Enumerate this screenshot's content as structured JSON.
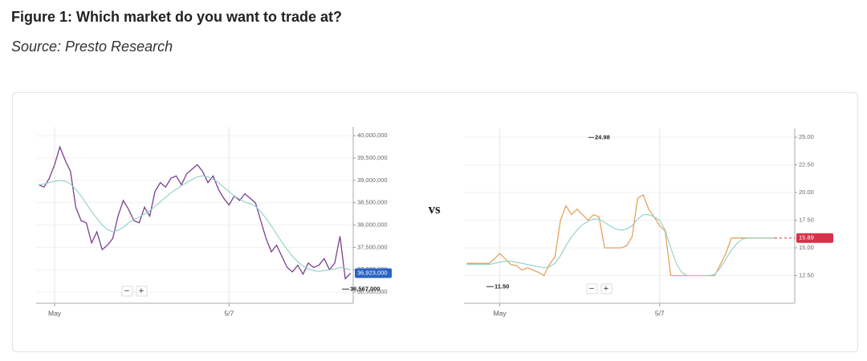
{
  "title": "Figure 1: Which market do you want to trade at?",
  "subtitle": "Source: Presto Research",
  "separator": "vs",
  "chart_data": [
    {
      "type": "line",
      "categories": [
        null,
        null,
        null,
        "May",
        null,
        null,
        null,
        null,
        null,
        null,
        null,
        null,
        null,
        null,
        null,
        null,
        null,
        null,
        null,
        null,
        null,
        null,
        null,
        null,
        null,
        null,
        null,
        null,
        null,
        null,
        null,
        null,
        null,
        null,
        null,
        null,
        "5/7",
        null,
        null,
        null,
        null,
        null,
        null,
        null,
        null,
        null,
        null,
        null,
        null,
        null,
        null,
        null,
        null,
        null,
        null,
        null,
        null,
        null,
        null,
        null
      ],
      "series": [
        {
          "color": "#7a3f8f",
          "values": [
            38900000,
            38850000,
            39050000,
            39350000,
            39750000,
            39450000,
            39200000,
            38400000,
            38100000,
            38050000,
            37600000,
            37850000,
            37450000,
            37550000,
            37700000,
            38200000,
            38550000,
            38350000,
            38100000,
            38050000,
            38400000,
            38200000,
            38750000,
            38950000,
            38850000,
            39050000,
            39100000,
            38900000,
            39150000,
            39250000,
            39350000,
            39200000,
            38950000,
            39100000,
            38800000,
            38600000,
            38450000,
            38650000,
            38550000,
            38700000,
            38600000,
            38500000,
            38100000,
            37700000,
            37400000,
            37550000,
            37300000,
            37050000,
            36950000,
            37100000,
            36900000,
            37150000,
            37050000,
            37100000,
            37250000,
            37000000,
            37150000,
            37750000,
            36800000,
            36923000
          ]
        },
        {
          "color": "#8fd0c8",
          "values": [
            38900000,
            38920000,
            38950000,
            38980000,
            39000000,
            38980000,
            38920000,
            38800000,
            38650000,
            38480000,
            38300000,
            38150000,
            38000000,
            37900000,
            37850000,
            37880000,
            37950000,
            38050000,
            38120000,
            38180000,
            38250000,
            38320000,
            38420000,
            38520000,
            38620000,
            38720000,
            38800000,
            38880000,
            38950000,
            39020000,
            39080000,
            39100000,
            39080000,
            39020000,
            38950000,
            38850000,
            38750000,
            38650000,
            38580000,
            38520000,
            38480000,
            38420000,
            38300000,
            38150000,
            37980000,
            37800000,
            37620000,
            37450000,
            37300000,
            37180000,
            37080000,
            37020000,
            36980000,
            36960000,
            36980000,
            37000000,
            37020000,
            37050000,
            37030000,
            37000000
          ]
        }
      ],
      "ylim": [
        36250000,
        40200000
      ],
      "yticks": [
        {
          "value": 36500000,
          "label": "36,500,000"
        },
        {
          "value": 37000000,
          "label": "37,000,000"
        },
        {
          "value": 37500000,
          "label": "37,500,000"
        },
        {
          "value": 38000000,
          "label": "38,000,000"
        },
        {
          "value": 38500000,
          "label": "38,500,000"
        },
        {
          "value": 39000000,
          "label": "39,000,000"
        },
        {
          "value": 39500000,
          "label": "39,500,000"
        },
        {
          "value": 40000000,
          "label": "40,000,000"
        }
      ],
      "grid": true,
      "price_labels": [
        {
          "value": 36923000,
          "label": "36,923,000",
          "color": "#2962c4"
        },
        {
          "value": 36567000,
          "label": "36,567,000"
        }
      ],
      "zoom_controls": [
        "−",
        "+"
      ]
    },
    {
      "type": "line",
      "categories": [
        null,
        null,
        null,
        null,
        null,
        null,
        "May",
        null,
        null,
        null,
        null,
        null,
        null,
        null,
        null,
        null,
        null,
        null,
        null,
        null,
        null,
        null,
        null,
        null,
        null,
        null,
        null,
        null,
        null,
        null,
        null,
        null,
        null,
        null,
        null,
        "5/7",
        null,
        null,
        null,
        null,
        null,
        null,
        null,
        null,
        null,
        null,
        null,
        null,
        null,
        null,
        null,
        null,
        null,
        null,
        null,
        null,
        null,
        null,
        null,
        null
      ],
      "series": [
        {
          "color": "#e8a25a",
          "values": [
            13.6,
            13.6,
            13.6,
            13.6,
            13.6,
            14.0,
            14.5,
            14.0,
            13.5,
            13.4,
            13.0,
            13.2,
            13.0,
            12.8,
            12.5,
            13.5,
            14.2,
            17.5,
            18.8,
            18.0,
            18.5,
            18.0,
            17.5,
            18.0,
            17.8,
            15.0,
            15.0,
            15.0,
            15.0,
            15.2,
            16.0,
            19.5,
            19.8,
            18.5,
            17.8,
            17.0,
            16.5,
            12.5,
            12.5,
            12.5,
            12.5,
            12.5,
            12.5,
            12.5,
            12.5,
            12.5,
            13.5,
            14.5,
            15.9,
            15.89,
            15.89,
            15.89,
            15.89,
            15.89,
            15.89,
            15.89,
            15.89,
            null,
            null,
            null
          ]
        },
        {
          "color": "#8fd0c8",
          "values": [
            13.5,
            13.5,
            13.5,
            13.5,
            13.5,
            13.6,
            13.7,
            13.8,
            13.8,
            13.7,
            13.6,
            13.5,
            13.4,
            13.3,
            13.2,
            13.3,
            13.6,
            14.3,
            15.2,
            16.0,
            16.6,
            17.1,
            17.4,
            17.6,
            17.6,
            17.3,
            17.0,
            16.7,
            16.6,
            16.7,
            17.0,
            17.6,
            18.0,
            18.0,
            17.8,
            17.5,
            16.6,
            15.0,
            13.6,
            12.8,
            12.5,
            12.5,
            12.5,
            12.5,
            12.5,
            12.6,
            13.2,
            14.0,
            14.8,
            15.4,
            15.8,
            15.89,
            15.89,
            15.89,
            15.89,
            15.89,
            15.89,
            null,
            null,
            null
          ]
        }
      ],
      "ylim": [
        10,
        25.8
      ],
      "yticks": [
        {
          "value": 12.5,
          "label": "12.50"
        },
        {
          "value": 15,
          "label": "15.00"
        },
        {
          "value": 17.5,
          "label": "17.50"
        },
        {
          "value": 20,
          "label": "20.00"
        },
        {
          "value": 22.5,
          "label": "22.50"
        },
        {
          "value": 25,
          "label": "25.00"
        }
      ],
      "grid": true,
      "price_labels": [
        {
          "value": 24.98
        },
        {
          "value": 11.5,
          "label": "11.50"
        },
        {
          "value": 15.89,
          "color": "#d6324a"
        }
      ],
      "zoom_controls": [
        "−",
        "+"
      ]
    }
  ]
}
